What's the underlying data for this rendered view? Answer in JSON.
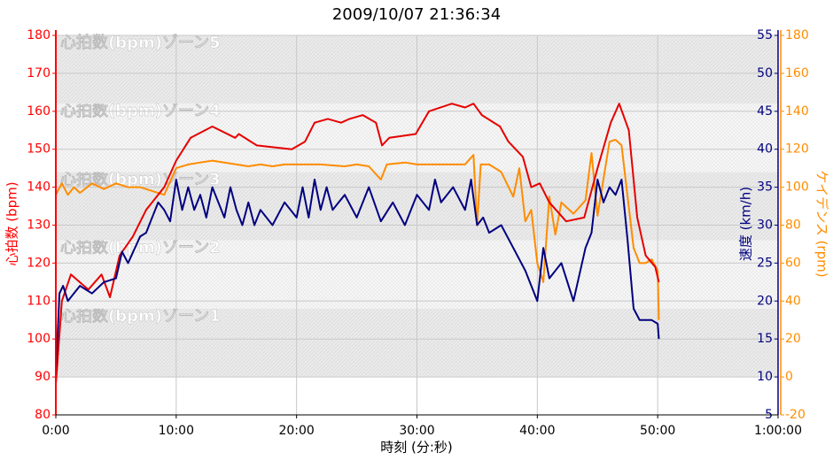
{
  "chart_data": {
    "type": "line",
    "title": "2009/10/07 21:36:34",
    "x_label": "時刻 (分:秒)",
    "y_label": "心拍数 (bpm)",
    "y2_label": "速度 (km/h)",
    "y3_label": "ケイデンス (rpm)",
    "grid": true,
    "xlim": [
      0,
      60
    ],
    "xticks": [
      {
        "value": 0,
        "label": "0:00"
      },
      {
        "value": 10,
        "label": "10:00"
      },
      {
        "value": 20,
        "label": "20:00"
      },
      {
        "value": 30,
        "label": "30:00"
      },
      {
        "value": 40,
        "label": "40:00"
      },
      {
        "value": 50,
        "label": "50:00"
      },
      {
        "value": 60,
        "label": "1:00:00"
      }
    ],
    "ylim": [
      80,
      180
    ],
    "yticks": [
      80,
      90,
      100,
      110,
      120,
      130,
      140,
      150,
      160,
      170,
      180
    ],
    "y2lim": [
      5,
      55
    ],
    "y2ticks": [
      5,
      10,
      15,
      20,
      25,
      30,
      35,
      40,
      45,
      50,
      55
    ],
    "y3lim": [
      -20,
      180
    ],
    "y3ticks": [
      -20,
      0,
      20,
      40,
      60,
      80,
      100,
      120,
      140,
      160,
      180
    ],
    "y_color": "#ff0000",
    "y2_color": "#000080",
    "y3_color": "#ff8c00",
    "zones": [
      {
        "label": "心拍数(bpm)ゾーン1",
        "range": [
          90,
          108
        ]
      },
      {
        "label": "心拍数(bpm)ゾーン2",
        "range": [
          108,
          126
        ]
      },
      {
        "label": "心拍数(bpm)ゾーン3",
        "range": [
          126,
          144
        ]
      },
      {
        "label": "心拍数(bpm)ゾーン4",
        "range": [
          144,
          162
        ]
      },
      {
        "label": "心拍数(bpm)ゾーン5",
        "range": [
          162,
          180
        ]
      }
    ],
    "series": [
      {
        "name": "心拍数",
        "axis": "y",
        "color": "#e60000",
        "x": [
          0,
          0.5,
          1.25,
          2.7,
          3.8,
          4.5,
          5.3,
          6.4,
          7.5,
          9,
          10,
          11.2,
          13,
          14.9,
          15.2,
          16.7,
          19.6,
          20.7,
          21.5,
          22.6,
          23.7,
          24.4,
          25.5,
          26.6,
          27.1,
          27.7,
          29.9,
          31,
          32.9,
          34,
          34.7,
          35.4,
          36.9,
          37.6,
          38.8,
          39.5,
          40.2,
          41,
          42.4,
          43.9,
          45,
          46.1,
          46.8,
          47.6,
          48.3,
          49,
          49.8,
          50.1
        ],
        "values": [
          88,
          110,
          117,
          113,
          117,
          111,
          122,
          127,
          134,
          140,
          147,
          153,
          156,
          153,
          154,
          151,
          150,
          152,
          157,
          158,
          157,
          158,
          159,
          157,
          151,
          153,
          154,
          160,
          162,
          161,
          162,
          159,
          156,
          152,
          148,
          140,
          141,
          136,
          131,
          132,
          145,
          157,
          162,
          155,
          132,
          122,
          119,
          115
        ]
      },
      {
        "name": "速度",
        "axis": "y2",
        "color": "#000080",
        "x": [
          0,
          0.3,
          0.6,
          1,
          2,
          3,
          4,
          5,
          5.5,
          6,
          7,
          7.5,
          8,
          8.5,
          9,
          9.5,
          10,
          10.5,
          11,
          11.5,
          12,
          12.5,
          13,
          13.5,
          14,
          14.5,
          15,
          15.5,
          16,
          16.5,
          17,
          18,
          19,
          20,
          20.5,
          21,
          21.5,
          22,
          22.5,
          23,
          24,
          25,
          25.5,
          26,
          27,
          28,
          29,
          30,
          31,
          31.5,
          32,
          33,
          34,
          34.5,
          35,
          35.5,
          36,
          37,
          38,
          39,
          40,
          40.5,
          41,
          42,
          43,
          44,
          44.5,
          45,
          45.5,
          46,
          46.5,
          47,
          47.5,
          48,
          48.5,
          49,
          49.5,
          50,
          50.1
        ],
        "values": [
          10,
          21,
          22,
          20,
          22,
          21,
          22.5,
          23,
          26.5,
          25,
          28.5,
          29,
          31,
          33,
          32,
          30.5,
          36,
          32,
          35,
          32,
          34,
          31,
          35,
          33,
          31,
          35,
          32,
          30,
          33,
          30,
          32,
          30,
          33,
          31,
          35,
          31,
          36,
          32,
          35,
          32,
          34,
          31,
          33,
          35,
          30.5,
          33,
          30,
          34,
          32,
          36,
          33,
          35,
          32,
          36,
          30,
          31,
          29,
          30,
          27,
          24,
          20,
          27,
          23,
          25,
          20,
          27,
          29,
          36,
          33,
          35,
          34,
          36,
          28,
          19,
          17.5,
          17.5,
          17.5,
          17,
          15
        ]
      },
      {
        "name": "ケイデンス",
        "axis": "y3",
        "color": "#ff8c00",
        "x": [
          0,
          0.5,
          1,
          1.5,
          2,
          3,
          4,
          5,
          6,
          7,
          8,
          9,
          10,
          11,
          12,
          13,
          14,
          15,
          16,
          17,
          18,
          19,
          20,
          22,
          24,
          25,
          26,
          27,
          27.5,
          29,
          30,
          32,
          34,
          34.7,
          35,
          35.3,
          36,
          37,
          38,
          38.5,
          39,
          39.5,
          40,
          40.5,
          41,
          41.5,
          42,
          43,
          44,
          44.5,
          45,
          46,
          46.5,
          47,
          47.5,
          48,
          48.5,
          49,
          49.5,
          50,
          50.1
        ],
        "values": [
          96,
          102,
          96,
          100,
          97,
          102,
          99,
          102,
          100,
          100,
          98,
          96,
          110,
          112,
          113,
          114,
          113,
          112,
          111,
          112,
          111,
          112,
          112,
          112,
          111,
          112,
          111,
          104,
          112,
          113,
          112,
          112,
          112,
          117,
          80,
          112,
          112,
          108,
          95,
          110,
          82,
          88,
          60,
          50,
          95,
          75,
          92,
          86,
          93,
          118,
          85,
          124,
          125,
          122,
          95,
          68,
          60,
          60,
          62,
          56,
          30
        ]
      }
    ]
  }
}
